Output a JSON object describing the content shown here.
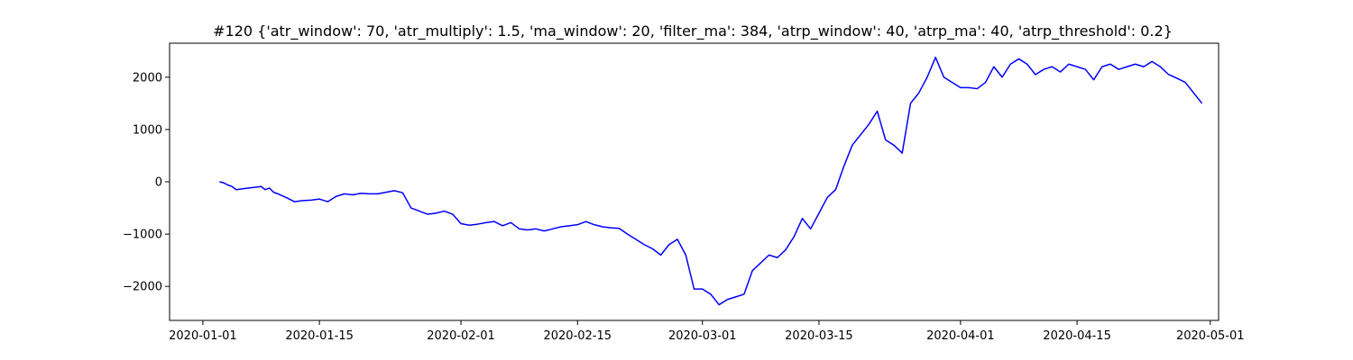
{
  "chart_data": {
    "type": "line",
    "title": "#120 {'atr_window': 70, 'atr_multiply': 1.5, 'ma_window': 20, 'filter_ma': 384, 'atrp_window': 40, 'atrp_ma': 40, 'atrp_threshold': 0.2}",
    "xlabel": "",
    "ylabel": "",
    "xlim": [
      "2019-12-28",
      "2020-05-02"
    ],
    "ylim": [
      -2650,
      2650
    ],
    "grid": false,
    "x_ticks": [
      "2020-01-01",
      "2020-01-15",
      "2020-02-01",
      "2020-02-15",
      "2020-03-01",
      "2020-03-15",
      "2020-04-01",
      "2020-04-15",
      "2020-05-01"
    ],
    "y_ticks": [
      -2000,
      -1000,
      0,
      1000,
      2000
    ],
    "series": [
      {
        "color": "#0000ff",
        "points": [
          [
            "2020-01-03",
            0
          ],
          [
            "2020-01-03.5",
            -20
          ],
          [
            "2020-01-04",
            -60
          ],
          [
            "2020-01-04.5",
            -90
          ],
          [
            "2020-01-05",
            -150
          ],
          [
            "2020-01-06",
            -130
          ],
          [
            "2020-01-07",
            -110
          ],
          [
            "2020-01-08",
            -90
          ],
          [
            "2020-01-08.5",
            -150
          ],
          [
            "2020-01-09",
            -120
          ],
          [
            "2020-01-09.5",
            -200
          ],
          [
            "2020-01-10",
            -230
          ],
          [
            "2020-01-11",
            -300
          ],
          [
            "2020-01-12",
            -380
          ],
          [
            "2020-01-13",
            -360
          ],
          [
            "2020-01-14",
            -350
          ],
          [
            "2020-01-15",
            -330
          ],
          [
            "2020-01-16",
            -380
          ],
          [
            "2020-01-17",
            -280
          ],
          [
            "2020-01-18",
            -230
          ],
          [
            "2020-01-19",
            -250
          ],
          [
            "2020-01-20",
            -220
          ],
          [
            "2020-01-21",
            -230
          ],
          [
            "2020-01-22",
            -230
          ],
          [
            "2020-01-23",
            -200
          ],
          [
            "2020-01-24",
            -170
          ],
          [
            "2020-01-25",
            -210
          ],
          [
            "2020-01-26",
            -500
          ],
          [
            "2020-01-27",
            -560
          ],
          [
            "2020-01-28",
            -620
          ],
          [
            "2020-01-29",
            -600
          ],
          [
            "2020-01-30",
            -560
          ],
          [
            "2020-01-31",
            -620
          ],
          [
            "2020-02-01",
            -800
          ],
          [
            "2020-02-02",
            -830
          ],
          [
            "2020-02-03",
            -810
          ],
          [
            "2020-02-04",
            -780
          ],
          [
            "2020-02-05",
            -760
          ],
          [
            "2020-02-06",
            -840
          ],
          [
            "2020-02-07",
            -780
          ],
          [
            "2020-02-08",
            -900
          ],
          [
            "2020-02-09",
            -920
          ],
          [
            "2020-02-10",
            -900
          ],
          [
            "2020-02-11",
            -940
          ],
          [
            "2020-02-12",
            -900
          ],
          [
            "2020-02-13",
            -860
          ],
          [
            "2020-02-14",
            -840
          ],
          [
            "2020-02-15",
            -820
          ],
          [
            "2020-02-16",
            -760
          ],
          [
            "2020-02-17",
            -820
          ],
          [
            "2020-02-18",
            -860
          ],
          [
            "2020-02-19",
            -880
          ],
          [
            "2020-02-20",
            -890
          ],
          [
            "2020-02-21",
            -1000
          ],
          [
            "2020-02-22",
            -1100
          ],
          [
            "2020-02-23",
            -1200
          ],
          [
            "2020-02-24",
            -1280
          ],
          [
            "2020-02-25",
            -1400
          ],
          [
            "2020-02-26",
            -1200
          ],
          [
            "2020-02-27",
            -1100
          ],
          [
            "2020-02-28",
            -1400
          ],
          [
            "2020-02-29",
            -2050
          ],
          [
            "2020-03-01",
            -2050
          ],
          [
            "2020-03-02",
            -2150
          ],
          [
            "2020-03-03",
            -2350
          ],
          [
            "2020-03-04",
            -2250
          ],
          [
            "2020-03-05",
            -2200
          ],
          [
            "2020-03-06",
            -2150
          ],
          [
            "2020-03-07",
            -1700
          ],
          [
            "2020-03-08",
            -1550
          ],
          [
            "2020-03-09",
            -1400
          ],
          [
            "2020-03-10",
            -1450
          ],
          [
            "2020-03-11",
            -1300
          ],
          [
            "2020-03-12",
            -1050
          ],
          [
            "2020-03-13",
            -700
          ],
          [
            "2020-03-14",
            -900
          ],
          [
            "2020-03-15",
            -600
          ],
          [
            "2020-03-16",
            -300
          ],
          [
            "2020-03-17",
            -150
          ],
          [
            "2020-03-18",
            300
          ],
          [
            "2020-03-19",
            700
          ],
          [
            "2020-03-20",
            900
          ],
          [
            "2020-03-21",
            1100
          ],
          [
            "2020-03-22",
            1350
          ],
          [
            "2020-03-23",
            800
          ],
          [
            "2020-03-24",
            700
          ],
          [
            "2020-03-25",
            550
          ],
          [
            "2020-03-26",
            1500
          ],
          [
            "2020-03-27",
            1700
          ],
          [
            "2020-03-28",
            2000
          ],
          [
            "2020-03-29",
            2380
          ],
          [
            "2020-03-30",
            2000
          ],
          [
            "2020-03-31",
            1900
          ],
          [
            "2020-04-01",
            1800
          ],
          [
            "2020-04-02",
            1800
          ],
          [
            "2020-04-03",
            1780
          ],
          [
            "2020-04-04",
            1900
          ],
          [
            "2020-04-05",
            2200
          ],
          [
            "2020-04-06",
            2000
          ],
          [
            "2020-04-07",
            2250
          ],
          [
            "2020-04-08",
            2350
          ],
          [
            "2020-04-09",
            2250
          ],
          [
            "2020-04-10",
            2050
          ],
          [
            "2020-04-11",
            2150
          ],
          [
            "2020-04-12",
            2200
          ],
          [
            "2020-04-13",
            2100
          ],
          [
            "2020-04-14",
            2250
          ],
          [
            "2020-04-15",
            2200
          ],
          [
            "2020-04-16",
            2150
          ],
          [
            "2020-04-17",
            1950
          ],
          [
            "2020-04-18",
            2200
          ],
          [
            "2020-04-19",
            2250
          ],
          [
            "2020-04-20",
            2150
          ],
          [
            "2020-04-21",
            2200
          ],
          [
            "2020-04-22",
            2250
          ],
          [
            "2020-04-23",
            2200
          ],
          [
            "2020-04-24",
            2300
          ],
          [
            "2020-04-25",
            2200
          ],
          [
            "2020-04-26",
            2050
          ],
          [
            "2020-04-27",
            1980
          ],
          [
            "2020-04-28",
            1900
          ],
          [
            "2020-04-29",
            1700
          ],
          [
            "2020-04-30",
            1500
          ]
        ]
      }
    ]
  }
}
